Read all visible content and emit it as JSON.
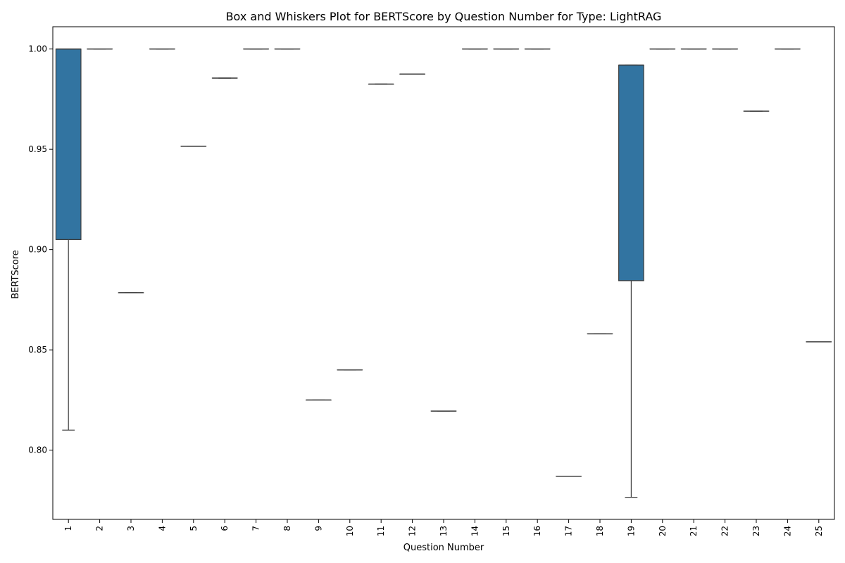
{
  "chart_data": {
    "type": "box",
    "title": "Box and Whiskers Plot for BERTScore by Question Number for Type: LightRAG",
    "xlabel": "Question Number",
    "ylabel": "BERTScore",
    "ylim": [
      0.7655,
      1.0111
    ],
    "yticks": [
      0.8,
      0.85,
      0.9,
      0.95,
      1.0
    ],
    "ytick_labels": [
      "0.80",
      "0.85",
      "0.90",
      "0.95",
      "1.00"
    ],
    "categories": [
      "1",
      "2",
      "3",
      "4",
      "5",
      "6",
      "7",
      "8",
      "9",
      "10",
      "11",
      "12",
      "13",
      "14",
      "15",
      "16",
      "17",
      "18",
      "19",
      "20",
      "21",
      "22",
      "23",
      "24",
      "25"
    ],
    "boxes": [
      {
        "category": "1",
        "min": 0.81,
        "q1": 0.905,
        "median": 1.0,
        "q3": 1.0,
        "max": 1.0
      },
      {
        "category": "2",
        "min": 1.0,
        "q1": 1.0,
        "median": 1.0,
        "q3": 1.0,
        "max": 1.0
      },
      {
        "category": "3",
        "min": 0.8785,
        "q1": 0.8785,
        "median": 0.8785,
        "q3": 0.8785,
        "max": 0.8785
      },
      {
        "category": "4",
        "min": 1.0,
        "q1": 1.0,
        "median": 1.0,
        "q3": 1.0,
        "max": 1.0
      },
      {
        "category": "5",
        "min": 0.9515,
        "q1": 0.9515,
        "median": 0.9515,
        "q3": 0.9515,
        "max": 0.9515
      },
      {
        "category": "6",
        "min": 0.9855,
        "q1": 0.9855,
        "median": 0.9855,
        "q3": 0.9855,
        "max": 0.9855
      },
      {
        "category": "7",
        "min": 1.0,
        "q1": 1.0,
        "median": 1.0,
        "q3": 1.0,
        "max": 1.0
      },
      {
        "category": "8",
        "min": 1.0,
        "q1": 1.0,
        "median": 1.0,
        "q3": 1.0,
        "max": 1.0
      },
      {
        "category": "9",
        "min": 0.825,
        "q1": 0.825,
        "median": 0.825,
        "q3": 0.825,
        "max": 0.825
      },
      {
        "category": "10",
        "min": 0.84,
        "q1": 0.84,
        "median": 0.84,
        "q3": 0.84,
        "max": 0.84
      },
      {
        "category": "11",
        "min": 0.9825,
        "q1": 0.9825,
        "median": 0.9825,
        "q3": 0.9825,
        "max": 0.9825
      },
      {
        "category": "12",
        "min": 0.9875,
        "q1": 0.9875,
        "median": 0.9875,
        "q3": 0.9875,
        "max": 0.9875
      },
      {
        "category": "13",
        "min": 0.8195,
        "q1": 0.8195,
        "median": 0.8195,
        "q3": 0.8195,
        "max": 0.8195
      },
      {
        "category": "14",
        "min": 1.0,
        "q1": 1.0,
        "median": 1.0,
        "q3": 1.0,
        "max": 1.0
      },
      {
        "category": "15",
        "min": 1.0,
        "q1": 1.0,
        "median": 1.0,
        "q3": 1.0,
        "max": 1.0
      },
      {
        "category": "16",
        "min": 1.0,
        "q1": 1.0,
        "median": 1.0,
        "q3": 1.0,
        "max": 1.0
      },
      {
        "category": "17",
        "min": 0.787,
        "q1": 0.787,
        "median": 0.787,
        "q3": 0.787,
        "max": 0.787
      },
      {
        "category": "18",
        "min": 0.858,
        "q1": 0.858,
        "median": 0.858,
        "q3": 0.858,
        "max": 0.858
      },
      {
        "category": "19",
        "min": 0.7765,
        "q1": 0.8845,
        "median": 0.992,
        "q3": 0.992,
        "max": 0.992
      },
      {
        "category": "20",
        "min": 1.0,
        "q1": 1.0,
        "median": 1.0,
        "q3": 1.0,
        "max": 1.0
      },
      {
        "category": "21",
        "min": 1.0,
        "q1": 1.0,
        "median": 1.0,
        "q3": 1.0,
        "max": 1.0
      },
      {
        "category": "22",
        "min": 1.0,
        "q1": 1.0,
        "median": 1.0,
        "q3": 1.0,
        "max": 1.0
      },
      {
        "category": "23",
        "min": 0.969,
        "q1": 0.969,
        "median": 0.969,
        "q3": 0.969,
        "max": 0.969
      },
      {
        "category": "24",
        "min": 1.0,
        "q1": 1.0,
        "median": 1.0,
        "q3": 1.0,
        "max": 1.0
      },
      {
        "category": "25",
        "min": 0.854,
        "q1": 0.854,
        "median": 0.854,
        "q3": 0.854,
        "max": 0.854
      }
    ],
    "box_color": "#3274a1",
    "line_color": "#3d3d3d",
    "grid": false,
    "legend": "none"
  }
}
